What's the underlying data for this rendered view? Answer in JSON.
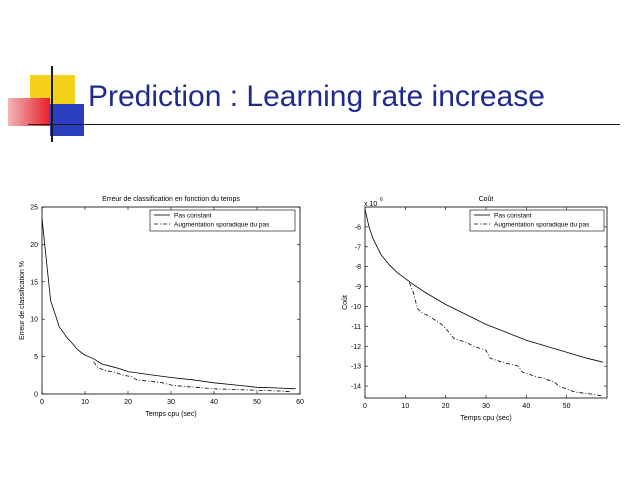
{
  "slide": {
    "title": "Prediction : Learning rate increase",
    "title_color": "#1f2a8c",
    "decoration_colors": {
      "yellow": "#f5d11a",
      "red": "#e8202a",
      "blue": "#2a3fbf"
    }
  },
  "chart_data": [
    {
      "type": "line",
      "title": "Erreur de classification en fonction du temps",
      "xlabel": "Temps cpu (sec)",
      "ylabel": "Erreur de classification %",
      "xlim": [
        0,
        60
      ],
      "ylim": [
        0,
        25
      ],
      "xticks": [
        "0",
        "10",
        "20",
        "30",
        "40",
        "50",
        "60"
      ],
      "yticks": [
        "0",
        "5",
        "10",
        "15",
        "20",
        "25"
      ],
      "legend_position": "top-right",
      "grid": false,
      "series": [
        {
          "name": "Pas constant",
          "style": "solid",
          "x": [
            0,
            1,
            2,
            3,
            4,
            5,
            6,
            7,
            8,
            9,
            10,
            12,
            14,
            16,
            18,
            20,
            25,
            30,
            35,
            40,
            45,
            50,
            55,
            59
          ],
          "y": [
            23.5,
            18,
            12.5,
            10.8,
            9,
            8.2,
            7.4,
            6.8,
            6.1,
            5.6,
            5.2,
            4.7,
            4,
            3.7,
            3.4,
            3,
            2.6,
            2.2,
            1.9,
            1.5,
            1.2,
            0.9,
            0.8,
            0.7
          ]
        },
        {
          "name": "Augmentation sporadique du pas",
          "style": "dashdot",
          "x": [
            12,
            13,
            15,
            17,
            19,
            21,
            22,
            25,
            28,
            30,
            33,
            36,
            40,
            45,
            50,
            55,
            58
          ],
          "y": [
            4.3,
            3.5,
            3.1,
            2.9,
            2.5,
            2.3,
            1.9,
            1.7,
            1.5,
            1.2,
            1.0,
            0.9,
            0.7,
            0.6,
            0.5,
            0.4,
            0.3
          ]
        }
      ]
    },
    {
      "type": "line",
      "title": "Coût",
      "xlabel": "Temps cpu (sec)",
      "ylabel": "Coût",
      "multiplier": "x 10",
      "multiplier_exp": "6",
      "xlim": [
        0,
        60
      ],
      "ylim": [
        -14.6,
        -5
      ],
      "xticks": [
        "0",
        "10",
        "20",
        "30",
        "40",
        "50"
      ],
      "yticks": [
        "-6",
        "-7",
        "-8",
        "-9",
        "-10",
        "-11",
        "-12",
        "-13",
        "-14"
      ],
      "legend_position": "top-right",
      "grid": false,
      "series": [
        {
          "name": "Pas constant",
          "style": "solid",
          "x": [
            0,
            1,
            2,
            3,
            4,
            6,
            8,
            10,
            12,
            15,
            20,
            25,
            30,
            35,
            40,
            45,
            50,
            55,
            59
          ],
          "y": [
            -5.1,
            -6.0,
            -6.6,
            -7.0,
            -7.4,
            -7.9,
            -8.3,
            -8.6,
            -8.9,
            -9.3,
            -9.9,
            -10.4,
            -10.9,
            -11.3,
            -11.7,
            -12.0,
            -12.3,
            -12.6,
            -12.8
          ]
        },
        {
          "name": "Augmentation sporadique du pas",
          "style": "dashdot",
          "x": [
            11,
            12,
            13,
            14,
            16,
            19,
            20,
            22,
            25,
            27,
            30,
            31,
            34,
            38,
            39,
            42,
            44,
            47,
            48,
            52,
            56,
            59
          ],
          "y": [
            -8.8,
            -9.3,
            -10.1,
            -10.3,
            -10.5,
            -10.9,
            -11.1,
            -11.6,
            -11.8,
            -12.0,
            -12.2,
            -12.6,
            -12.8,
            -13.0,
            -13.3,
            -13.5,
            -13.6,
            -13.8,
            -14.0,
            -14.3,
            -14.4,
            -14.5
          ]
        }
      ]
    }
  ]
}
